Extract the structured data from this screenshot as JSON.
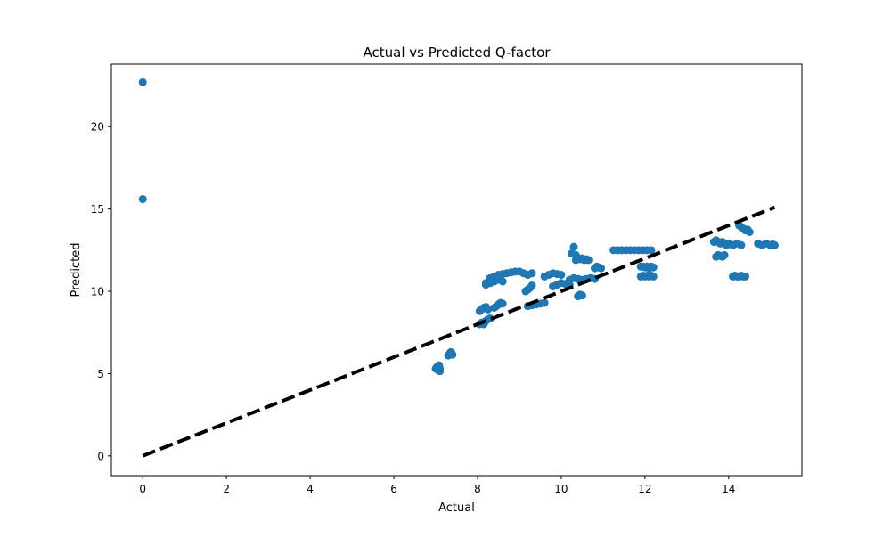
{
  "chart_data": {
    "type": "scatter",
    "title": "Actual vs Predicted Q-factor",
    "xlabel": "Actual",
    "ylabel": "Predicted",
    "xlim": [
      -0.75,
      15.75
    ],
    "ylim": [
      -1.2,
      23.8
    ],
    "xticks": [
      0,
      2,
      4,
      6,
      8,
      10,
      12,
      14
    ],
    "yticks": [
      0,
      5,
      10,
      15,
      20
    ],
    "grid": false,
    "colors": {
      "points": "#1f77b4",
      "reference_line": "#000000"
    },
    "reference_line": {
      "style": "dashed",
      "x": [
        0,
        15.1
      ],
      "y": [
        0,
        15.1
      ]
    },
    "series": [
      {
        "x": [
          0,
          0,
          7.0,
          7.03,
          7.06,
          7.08,
          7.1,
          7.1,
          7.3,
          7.33,
          7.36,
          7.38,
          7.4,
          8.05,
          8.1,
          8.15,
          8.2,
          8.25,
          8.3,
          8.05,
          8.1,
          8.15,
          8.2,
          8.25,
          8.4,
          8.45,
          8.5,
          8.55,
          8.6,
          8.2,
          8.3,
          8.4,
          8.5,
          8.6,
          8.7,
          8.8,
          8.9,
          9.0,
          9.1,
          9.2,
          9.3,
          8.2,
          8.3,
          8.4,
          8.5,
          8.6,
          9.15,
          9.2,
          9.25,
          9.3,
          9.2,
          9.3,
          9.4,
          9.5,
          9.6,
          9.6,
          9.7,
          9.8,
          9.9,
          10.0,
          9.8,
          9.9,
          10.0,
          10.1,
          10.2,
          10.2,
          10.3,
          10.4,
          10.5,
          10.6,
          10.7,
          10.8,
          10.25,
          10.3,
          10.35,
          10.35,
          10.4,
          10.45,
          10.5,
          10.55,
          10.6,
          10.65,
          10.4,
          10.45,
          10.5,
          10.8,
          10.85,
          10.9,
          10.95,
          11.25,
          11.35,
          11.45,
          11.55,
          11.65,
          11.75,
          11.85,
          11.95,
          12.05,
          12.15,
          11.9,
          11.95,
          12.0,
          12.05,
          12.1,
          12.15,
          12.2,
          11.9,
          11.95,
          12.0,
          12.05,
          12.1,
          12.15,
          12.2,
          13.65,
          13.7,
          13.75,
          13.8,
          13.85,
          13.9,
          13.95,
          14.0,
          14.1,
          14.2,
          14.3,
          13.7,
          13.75,
          13.8,
          13.85,
          13.9,
          14.1,
          14.15,
          14.2,
          14.25,
          14.3,
          14.35,
          14.4,
          14.25,
          14.3,
          14.35,
          14.4,
          14.45,
          14.5,
          14.7,
          14.8,
          14.9,
          15.0,
          15.05,
          15.1
        ],
        "y": [
          22.7,
          15.6,
          5.3,
          5.4,
          5.2,
          5.5,
          5.15,
          5.3,
          6.1,
          6.2,
          6.3,
          6.25,
          6.15,
          8.0,
          8.1,
          8.0,
          8.2,
          8.3,
          8.35,
          8.8,
          8.9,
          9.0,
          9.05,
          8.9,
          9.0,
          9.1,
          9.2,
          9.3,
          9.25,
          10.5,
          10.8,
          10.9,
          11.0,
          11.05,
          11.1,
          11.15,
          11.2,
          11.2,
          11.1,
          11.0,
          11.1,
          10.4,
          10.5,
          10.6,
          10.7,
          10.6,
          10.0,
          10.1,
          10.2,
          10.35,
          9.1,
          9.15,
          9.2,
          9.25,
          9.3,
          10.9,
          11.0,
          11.1,
          11.05,
          11.0,
          10.3,
          10.4,
          10.5,
          10.45,
          10.4,
          10.7,
          10.8,
          10.75,
          10.7,
          10.75,
          10.8,
          10.75,
          12.3,
          12.7,
          12.2,
          11.9,
          12.0,
          11.95,
          12.0,
          11.9,
          11.95,
          11.9,
          9.7,
          9.8,
          9.75,
          11.4,
          11.5,
          11.45,
          11.4,
          12.5,
          12.5,
          12.5,
          12.5,
          12.5,
          12.5,
          12.5,
          12.5,
          12.5,
          12.5,
          11.5,
          11.5,
          11.45,
          11.5,
          11.4,
          11.5,
          11.45,
          10.9,
          10.95,
          10.9,
          10.95,
          10.9,
          10.95,
          10.9,
          13.0,
          13.1,
          13.0,
          12.9,
          13.0,
          12.9,
          12.8,
          12.9,
          12.8,
          12.9,
          12.8,
          12.1,
          12.2,
          12.15,
          12.1,
          12.2,
          10.9,
          10.95,
          10.9,
          10.9,
          10.95,
          10.9,
          10.9,
          14.0,
          13.9,
          13.8,
          13.7,
          13.75,
          13.6,
          12.9,
          12.8,
          12.9,
          12.8,
          12.85,
          12.8
        ]
      }
    ]
  }
}
